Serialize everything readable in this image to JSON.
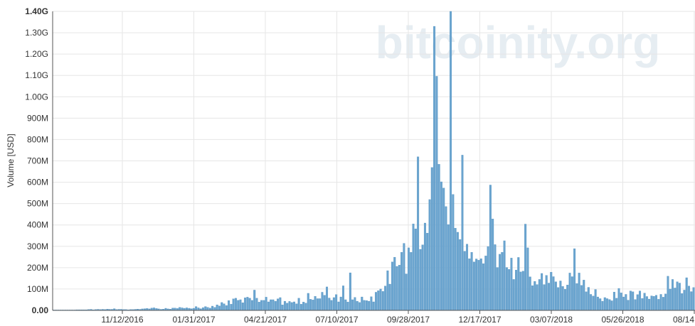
{
  "watermark": "bitcoinity.org",
  "colors": {
    "bar": "#6aa4cf",
    "bar_stroke": "#4f8fbf",
    "grid": "#e6e6e6",
    "axis": "#555555"
  },
  "chart_data": {
    "type": "bar",
    "ylabel": "Volume [USD]",
    "ylim": [
      0,
      1400000000
    ],
    "grid": true,
    "y_ticks": [
      {
        "value": 0,
        "label": "0.00"
      },
      {
        "value": 100000000,
        "label": "100M"
      },
      {
        "value": 200000000,
        "label": "200M"
      },
      {
        "value": 300000000,
        "label": "300M"
      },
      {
        "value": 400000000,
        "label": "400M"
      },
      {
        "value": 500000000,
        "label": "500M"
      },
      {
        "value": 600000000,
        "label": "600M"
      },
      {
        "value": 700000000,
        "label": "700M"
      },
      {
        "value": 800000000,
        "label": "800M"
      },
      {
        "value": 900000000,
        "label": "900M"
      },
      {
        "value": 1000000000,
        "label": "1.00G"
      },
      {
        "value": 1100000000,
        "label": "1.10G"
      },
      {
        "value": 1200000000,
        "label": "1.20G"
      },
      {
        "value": 1300000000,
        "label": "1.30G"
      },
      {
        "value": 1400000000,
        "label": "1.40G"
      }
    ],
    "x_ticks": [
      "11/12/2016",
      "01/31/2017",
      "04/21/2017",
      "07/10/2017",
      "09/28/2017",
      "12/17/2017",
      "03/07/2018",
      "05/26/2018",
      "08/14"
    ],
    "series": [
      {
        "values": [
          2000000,
          2000000,
          2000000,
          2000000,
          2000000,
          2000000,
          2000000,
          2000000,
          2000000,
          2000000,
          3000000,
          3000000,
          3000000,
          3000000,
          3000000,
          4000000,
          5000000,
          3000000,
          4000000,
          5000000,
          4000000,
          5000000,
          4000000,
          6000000,
          5000000,
          5000000,
          8000000,
          4000000,
          5000000,
          5000000,
          4000000,
          4000000,
          3000000,
          4000000,
          4000000,
          5000000,
          6000000,
          5000000,
          7000000,
          8000000,
          9000000,
          7000000,
          11000000,
          12000000,
          9000000,
          7000000,
          5000000,
          6000000,
          10000000,
          7000000,
          6000000,
          11000000,
          11000000,
          9000000,
          14000000,
          12000000,
          10000000,
          12000000,
          10000000,
          8000000,
          10000000,
          18000000,
          12000000,
          8000000,
          13000000,
          18000000,
          14000000,
          11000000,
          20000000,
          14000000,
          26000000,
          21000000,
          37000000,
          31000000,
          23000000,
          46000000,
          29000000,
          54000000,
          57000000,
          47000000,
          50000000,
          36000000,
          59000000,
          62000000,
          57000000,
          47000000,
          95000000,
          57000000,
          39000000,
          47000000,
          47000000,
          62000000,
          40000000,
          50000000,
          50000000,
          43000000,
          54000000,
          60000000,
          26000000,
          43000000,
          34000000,
          42000000,
          37000000,
          40000000,
          31000000,
          57000000,
          29000000,
          39000000,
          34000000,
          80000000,
          52000000,
          49000000,
          66000000,
          55000000,
          55000000,
          85000000,
          71000000,
          110000000,
          58000000,
          47000000,
          60000000,
          74000000,
          40000000,
          63000000,
          115000000,
          50000000,
          39000000,
          176000000,
          50000000,
          61000000,
          43000000,
          37000000,
          63000000,
          47000000,
          46000000,
          43000000,
          64000000,
          40000000,
          85000000,
          92000000,
          100000000,
          89000000,
          114000000,
          186000000,
          123000000,
          227000000,
          249000000,
          206000000,
          212000000,
          272000000,
          314000000,
          171000000,
          293000000,
          272000000,
          405000000,
          382000000,
          719000000,
          286000000,
          307000000,
          409000000,
          362000000,
          519000000,
          669000000,
          1330000000,
          1096000000,
          684000000,
          602000000,
          573000000,
          486000000,
          402000000,
          1400000000,
          543000000,
          385000000,
          366000000,
          332000000,
          727000000,
          277000000,
          310000000,
          242000000,
          272000000,
          227000000,
          241000000,
          235000000,
          242000000,
          219000000,
          255000000,
          299000000,
          587000000,
          428000000,
          308000000,
          201000000,
          263000000,
          272000000,
          326000000,
          201000000,
          192000000,
          245000000,
          145000000,
          189000000,
          248000000,
          180000000,
          184000000,
          404000000,
          293000000,
          157000000,
          116000000,
          136000000,
          121000000,
          145000000,
          173000000,
          121000000,
          164000000,
          128000000,
          179000000,
          158000000,
          134000000,
          107000000,
          138000000,
          112000000,
          99000000,
          119000000,
          175000000,
          158000000,
          289000000,
          126000000,
          175000000,
          117000000,
          142000000,
          87000000,
          108000000,
          75000000,
          67000000,
          98000000,
          63000000,
          55000000,
          43000000,
          60000000,
          55000000,
          51000000,
          45000000,
          86000000,
          57000000,
          103000000,
          82000000,
          63000000,
          75000000,
          48000000,
          91000000,
          87000000,
          51000000,
          74000000,
          91000000,
          56000000,
          81000000,
          65000000,
          53000000,
          68000000,
          66000000,
          71000000,
          52000000,
          75000000,
          62000000,
          77000000,
          160000000,
          100000000,
          145000000,
          105000000,
          134000000,
          128000000,
          79000000,
          95000000,
          153000000,
          114000000,
          88000000,
          107000000
        ]
      }
    ]
  }
}
